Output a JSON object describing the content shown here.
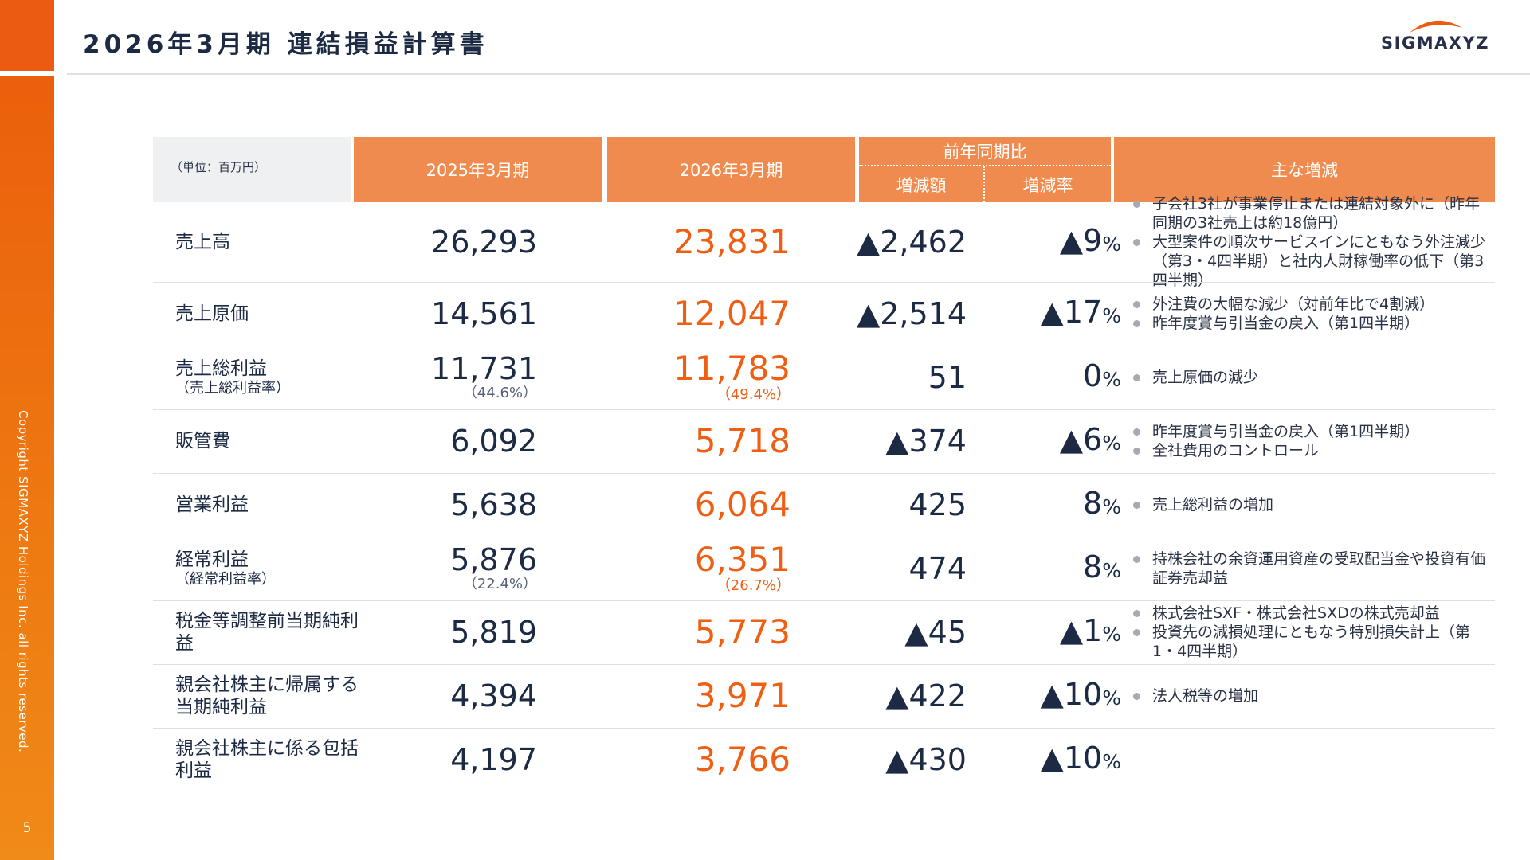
{
  "page": {
    "title": "2026年3月期 連結損益計算書",
    "logo_text": "SIGMAXYZ",
    "copyright": "Copyright SIGMAXYZ Holdings Inc. all rights reserved.",
    "page_number": "5",
    "colors": {
      "accent": "#ee5f14",
      "header_orange": "#f08b4f",
      "navy": "#1d2a44"
    }
  },
  "table": {
    "unit_label": "（単位：百万円）",
    "col_2025": "2025年3月期",
    "col_2026": "2026年3月期",
    "col_yoy": "前年同期比",
    "col_diff": "増減額",
    "col_rate": "増減率",
    "col_notes": "主な増減",
    "pct_sign": "%",
    "rows": [
      {
        "label": "売上高",
        "sub": "",
        "v2025": "26,293",
        "p2025": "",
        "v2026": "23,831",
        "p2026": "",
        "diff": "▲2,462",
        "rate": "▲9",
        "notes": [
          "子会社3社が事業停止または連結対象外に（昨年同期の3社売上は約18億円）",
          "大型案件の順次サービスインにともなう外注減少（第3・4四半期）と社内人財稼働率の低下（第3四半期）"
        ]
      },
      {
        "label": "売上原価",
        "sub": "",
        "v2025": "14,561",
        "p2025": "",
        "v2026": "12,047",
        "p2026": "",
        "diff": "▲2,514",
        "rate": "▲17",
        "notes": [
          "外注費の大幅な減少（対前年比で4割減）",
          "昨年度賞与引当金の戻入（第1四半期）"
        ]
      },
      {
        "label": "売上総利益",
        "sub": "（売上総利益率）",
        "v2025": "11,731",
        "p2025": "（44.6%）",
        "v2026": "11,783",
        "p2026": "（49.4%）",
        "diff": "51",
        "rate": "0",
        "notes": [
          "売上原価の減少"
        ]
      },
      {
        "label": "販管費",
        "sub": "",
        "v2025": "6,092",
        "p2025": "",
        "v2026": "5,718",
        "p2026": "",
        "diff": "▲374",
        "rate": "▲6",
        "notes": [
          "昨年度賞与引当金の戻入（第1四半期）",
          "全社費用のコントロール"
        ]
      },
      {
        "label": "営業利益",
        "sub": "",
        "v2025": "5,638",
        "p2025": "",
        "v2026": "6,064",
        "p2026": "",
        "diff": "425",
        "rate": "8",
        "notes": [
          "売上総利益の増加"
        ]
      },
      {
        "label": "経常利益",
        "sub": "（経常利益率）",
        "v2025": "5,876",
        "p2025": "（22.4%）",
        "v2026": "6,351",
        "p2026": "（26.7%）",
        "diff": "474",
        "rate": "8",
        "notes": [
          "持株会社の余資運用資産の受取配当金や投資有価証券売却益"
        ]
      },
      {
        "label": "税金等調整前当期純利益",
        "sub": "",
        "v2025": "5,819",
        "p2025": "",
        "v2026": "5,773",
        "p2026": "",
        "diff": "▲45",
        "rate": "▲1",
        "notes": [
          "株式会社SXF・株式会社SXDの株式売却益",
          "投資先の減損処理にともなう特別損失計上（第1・4四半期）"
        ]
      },
      {
        "label": "親会社株主に帰属する当期純利益",
        "sub": "",
        "v2025": "4,394",
        "p2025": "",
        "v2026": "3,971",
        "p2026": "",
        "diff": "▲422",
        "rate": "▲10",
        "notes": [
          "法人税等の増加"
        ]
      },
      {
        "label": "親会社株主に係る包括利益",
        "sub": "",
        "v2025": "4,197",
        "p2025": "",
        "v2026": "3,766",
        "p2026": "",
        "diff": "▲430",
        "rate": "▲10",
        "notes": []
      }
    ]
  }
}
